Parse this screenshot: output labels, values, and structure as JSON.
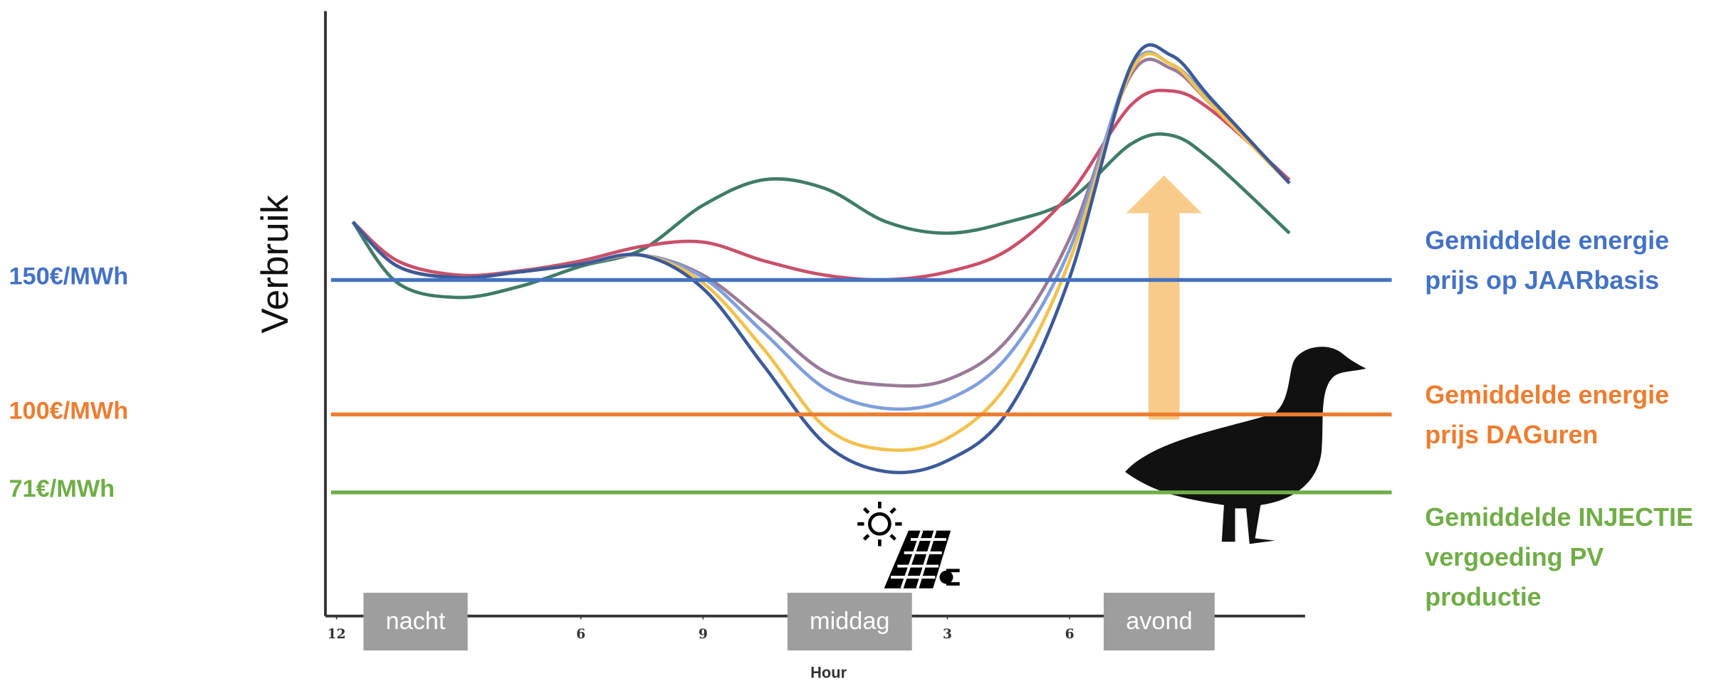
{
  "chart_data": {
    "type": "line",
    "y_label": "Verbruik",
    "x_label": "Hour",
    "xlim": [
      0,
      24
    ],
    "ylim": [
      25,
      250
    ],
    "xticks": [
      {
        "value": 0,
        "label": "12"
      },
      {
        "value": 6,
        "label": "6"
      },
      {
        "value": 9,
        "label": "9"
      },
      {
        "value": 15,
        "label": "3"
      },
      {
        "value": 18,
        "label": "6"
      }
    ],
    "periods": [
      {
        "label": "nacht",
        "x": 1.94
      },
      {
        "label": "middag",
        "x": 12.6
      },
      {
        "label": "avond",
        "x": 20.2
      }
    ],
    "x": [
      0.4,
      1.5,
      3,
      4.5,
      6,
      7.5,
      9,
      10.5,
      12,
      13.5,
      15,
      16.5,
      18,
      19.5,
      20.5,
      21.5,
      23.4
    ],
    "series": [
      {
        "color": "#3f7c68",
        "values": [
          171.6,
          148.9,
          143.5,
          147.6,
          155.1,
          161.3,
          177.8,
          187.3,
          184.0,
          171.6,
          167.4,
          171.6,
          179.8,
          200.5,
          203.8,
          194.3,
          167.4
        ]
      },
      {
        "color": "#c9506a",
        "values": [
          171.6,
          157.1,
          151.8,
          153.4,
          157.1,
          162.5,
          164.1,
          157.1,
          151.8,
          150.1,
          153.0,
          161.3,
          181.9,
          214.9,
          220.3,
          212.9,
          187.2
        ]
      },
      {
        "color": "#9a7b97",
        "values": [
          171.6,
          155.1,
          150.9,
          153.0,
          155.9,
          159.2,
          151.8,
          134.4,
          115.8,
          110.9,
          112.9,
          128.2,
          165.4,
          226.1,
          228.6,
          214.9,
          186.0
        ]
      },
      {
        "color": "#7f9fdc",
        "values": [
          171.6,
          155.1,
          150.9,
          153.0,
          155.9,
          159.2,
          150.9,
          130.3,
          109.6,
          102.2,
          105.5,
          122.0,
          161.3,
          228.6,
          230.2,
          216.2,
          186.0
        ]
      },
      {
        "color": "#f2c14e",
        "values": [
          171.6,
          155.1,
          150.9,
          153.0,
          155.9,
          159.2,
          148.9,
          124.1,
          95.2,
          86.9,
          91.1,
          111.7,
          157.1,
          227.3,
          230.2,
          214.9,
          186.0
        ]
      },
      {
        "color": "#3d5a99",
        "values": [
          171.6,
          155.1,
          150.9,
          153.0,
          155.9,
          159.2,
          146.8,
          117.9,
          89.0,
          78.7,
          82.8,
          101.4,
          150.9,
          229.4,
          233.5,
          217.0,
          186.0
        ]
      }
    ],
    "price_lines": [
      {
        "label": "150€/MWh",
        "value": 150,
        "color": "#4472c4",
        "description": [
          "Gemiddelde energie",
          "prijs op JAARbasis"
        ]
      },
      {
        "label": "100€/MWh",
        "value": 100,
        "color": "#ed7d31",
        "description": [
          "Gemiddelde energie",
          "prijs DAGuren"
        ]
      },
      {
        "label": "71€/MWh",
        "value": 71,
        "color": "#70ad47",
        "description": [
          "Gemiddelde INJECTIE",
          "vergoeding PV",
          "productie"
        ]
      }
    ]
  }
}
